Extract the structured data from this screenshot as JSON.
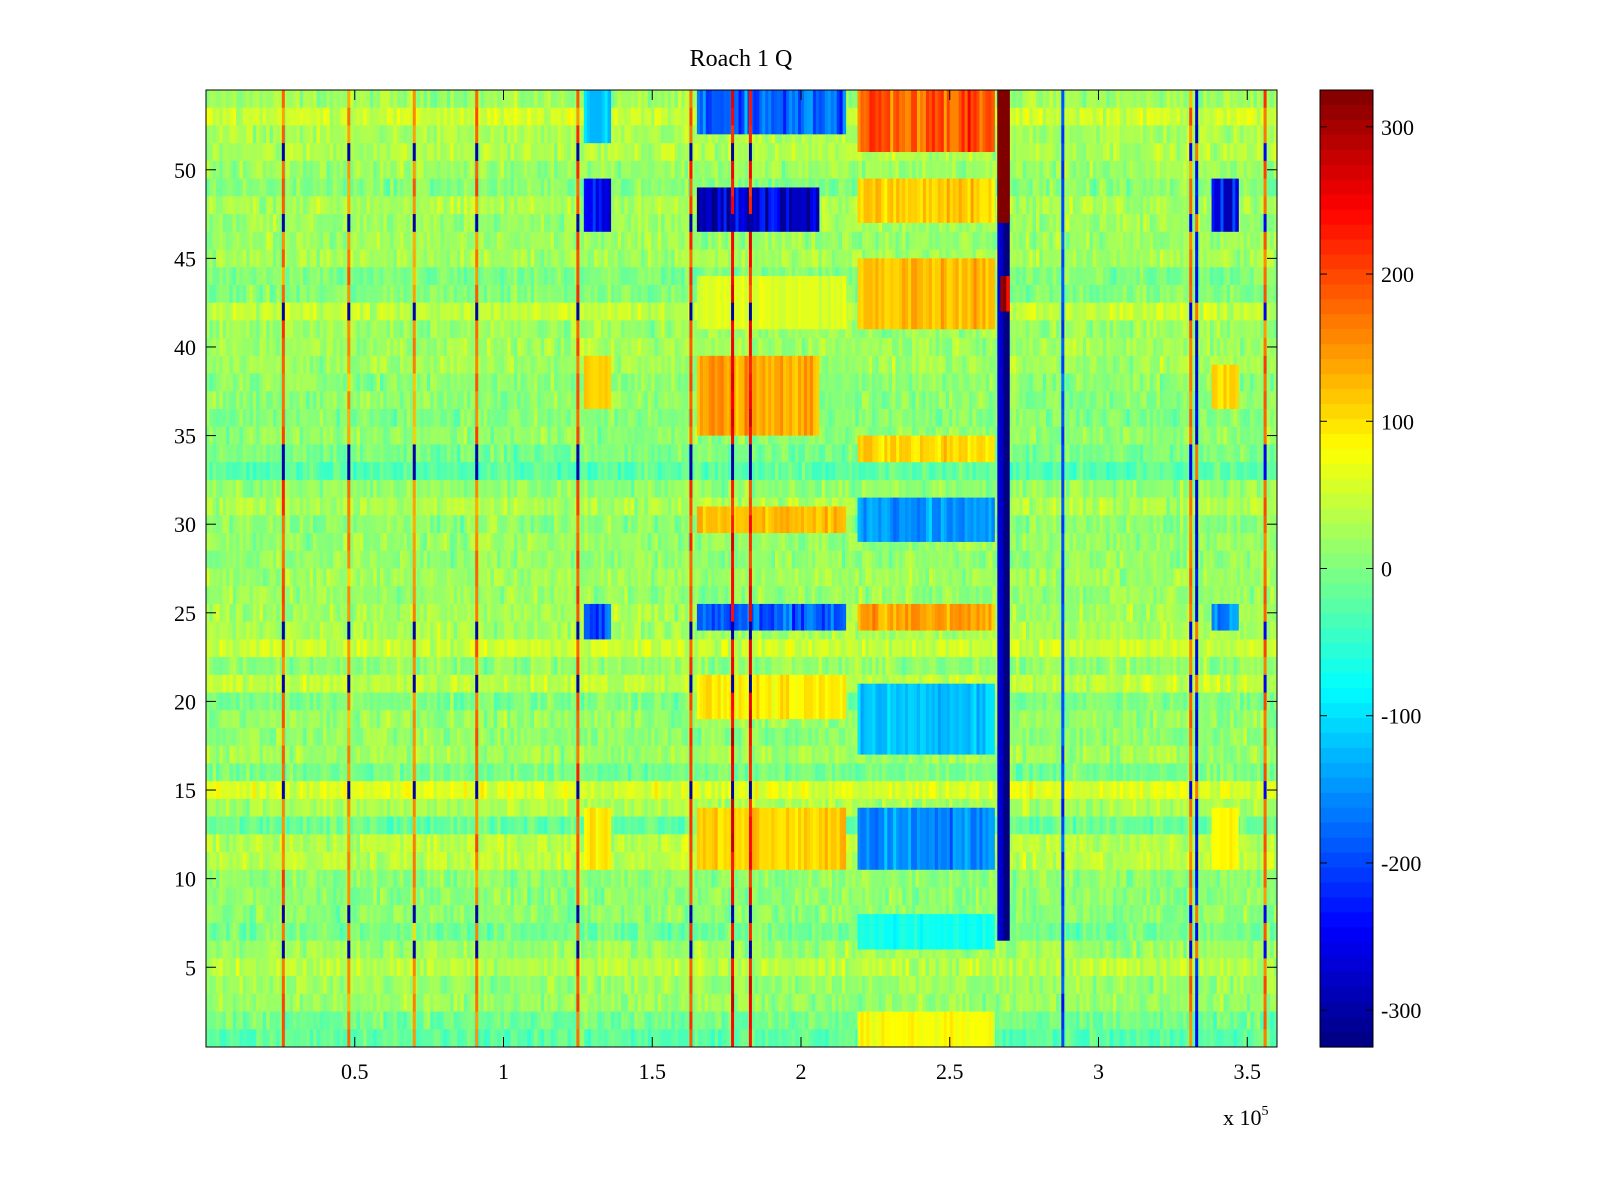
{
  "chart_data": {
    "type": "heatmap",
    "title": "Roach 1 Q",
    "xlabel": "",
    "ylabel": "",
    "x_multiplier_label": {
      "base": "x 10",
      "exponent": "5"
    },
    "xlim": [
      0,
      3.6
    ],
    "ylim": [
      0.5,
      54.5
    ],
    "x_ticks": [
      0.5,
      1,
      1.5,
      2,
      2.5,
      3,
      3.5
    ],
    "x_tick_labels": [
      "0.5",
      "1",
      "1.5",
      "2",
      "2.5",
      "3",
      "3.5"
    ],
    "y_ticks": [
      5,
      10,
      15,
      20,
      25,
      30,
      35,
      40,
      45,
      50
    ],
    "y_tick_labels": [
      "5",
      "10",
      "15",
      "20",
      "25",
      "30",
      "35",
      "40",
      "45",
      "50"
    ],
    "colormap": "jet",
    "colorbar": {
      "range": [
        -325,
        325
      ],
      "ticks": [
        -300,
        -200,
        -100,
        0,
        100,
        200,
        300
      ],
      "tick_labels": [
        "-300",
        "-200",
        "-100",
        "0",
        "100",
        "200",
        "300"
      ]
    },
    "rows": 54,
    "background_level": 15,
    "spike_lines": [
      {
        "x": 0.26,
        "level": 180,
        "alt_level": -300
      },
      {
        "x": 0.48,
        "level": 150,
        "alt_level": -300
      },
      {
        "x": 0.7,
        "level": 150,
        "alt_level": -300
      },
      {
        "x": 0.91,
        "level": 170,
        "alt_level": -300
      },
      {
        "x": 1.25,
        "level": 190,
        "alt_level": -300
      },
      {
        "x": 1.63,
        "level": 200,
        "alt_level": -300
      },
      {
        "x": 1.77,
        "level": 250,
        "alt_level": -300
      },
      {
        "x": 1.83,
        "level": 230,
        "alt_level": -300
      },
      {
        "x": 2.88,
        "level": -200,
        "alt_level": -200
      },
      {
        "x": 3.31,
        "level": 170,
        "alt_level": -250
      },
      {
        "x": 3.33,
        "level": -250,
        "alt_level": 170
      },
      {
        "x": 3.56,
        "level": 180,
        "alt_level": -250
      }
    ],
    "blocks": [
      {
        "x0": 2.19,
        "x1": 2.65,
        "y0": 51,
        "y1": 54.5,
        "value": 190
      },
      {
        "x0": 2.19,
        "x1": 2.65,
        "y0": 47,
        "y1": 49.5,
        "value": 110
      },
      {
        "x0": 2.19,
        "x1": 2.65,
        "y0": 41,
        "y1": 45,
        "value": 120
      },
      {
        "x0": 2.19,
        "x1": 2.65,
        "y0": 33.5,
        "y1": 35,
        "value": 110
      },
      {
        "x0": 2.19,
        "x1": 2.65,
        "y0": 29,
        "y1": 31.5,
        "value": -150
      },
      {
        "x0": 2.19,
        "x1": 2.65,
        "y0": 24,
        "y1": 25.5,
        "value": 140
      },
      {
        "x0": 2.19,
        "x1": 2.65,
        "y0": 17,
        "y1": 21,
        "value": -120
      },
      {
        "x0": 2.19,
        "x1": 2.65,
        "y0": 10.5,
        "y1": 14,
        "value": -150
      },
      {
        "x0": 2.19,
        "x1": 2.65,
        "y0": 6,
        "y1": 8,
        "value": -70
      },
      {
        "x0": 2.19,
        "x1": 2.65,
        "y0": 0.5,
        "y1": 2.5,
        "value": 80
      },
      {
        "x0": 1.65,
        "x1": 2.06,
        "y0": 46.5,
        "y1": 49,
        "value": -280
      },
      {
        "x0": 1.65,
        "x1": 2.15,
        "y0": 52,
        "y1": 54.5,
        "value": -180
      },
      {
        "x0": 1.65,
        "x1": 2.06,
        "y0": 35,
        "y1": 39.5,
        "value": 140
      },
      {
        "x0": 1.65,
        "x1": 2.15,
        "y0": 29.5,
        "y1": 31,
        "value": 120
      },
      {
        "x0": 1.65,
        "x1": 2.15,
        "y0": 24,
        "y1": 25.5,
        "value": -180
      },
      {
        "x0": 1.65,
        "x1": 2.15,
        "y0": 19,
        "y1": 21.5,
        "value": 90
      },
      {
        "x0": 1.65,
        "x1": 2.15,
        "y0": 10.5,
        "y1": 14,
        "value": 110
      },
      {
        "x0": 1.65,
        "x1": 2.15,
        "y0": 41,
        "y1": 44,
        "value": 60
      },
      {
        "x0": 1.27,
        "x1": 1.36,
        "y0": 46.5,
        "y1": 49.5,
        "value": -250
      },
      {
        "x0": 1.27,
        "x1": 1.36,
        "y0": 23.5,
        "y1": 25.5,
        "value": -200
      },
      {
        "x0": 1.27,
        "x1": 1.36,
        "y0": 36.5,
        "y1": 39.5,
        "value": 110
      },
      {
        "x0": 1.27,
        "x1": 1.36,
        "y0": 10.5,
        "y1": 14,
        "value": 90
      },
      {
        "x0": 1.27,
        "x1": 1.36,
        "y0": 51.5,
        "y1": 54.5,
        "value": -120
      },
      {
        "x0": 3.38,
        "x1": 3.47,
        "y0": 46.5,
        "y1": 49.5,
        "value": -250
      },
      {
        "x0": 3.38,
        "x1": 3.47,
        "y0": 24,
        "y1": 25.5,
        "value": -150
      },
      {
        "x0": 3.38,
        "x1": 3.47,
        "y0": 36.5,
        "y1": 39,
        "value": 110
      },
      {
        "x0": 3.38,
        "x1": 3.47,
        "y0": 10.5,
        "y1": 14,
        "value": 80
      },
      {
        "x0": 2.66,
        "x1": 2.7,
        "y0": 6.5,
        "y1": 54.5,
        "value": -320
      },
      {
        "x0": 2.66,
        "x1": 2.7,
        "y0": 47,
        "y1": 54.5,
        "value": 330
      },
      {
        "x0": 2.67,
        "x1": 2.7,
        "y0": 42,
        "y1": 44,
        "value": 300
      }
    ]
  }
}
